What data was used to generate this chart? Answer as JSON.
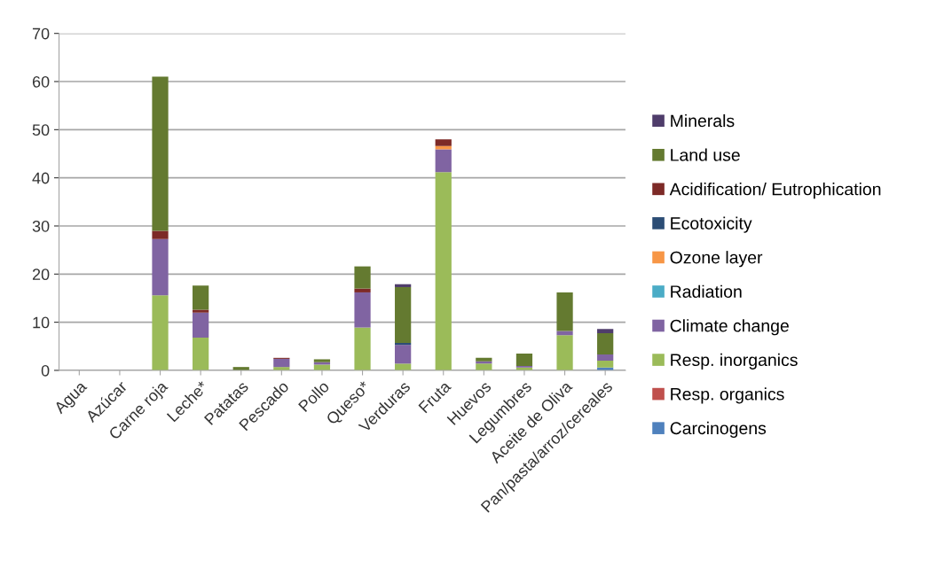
{
  "chart_data": {
    "type": "bar",
    "stacked": true,
    "categories": [
      "Agua",
      "Azúcar",
      "Carne roja",
      "Leche*",
      "Patatas",
      "Pescado",
      "Pollo",
      "Queso*",
      "Verduras",
      "Fruta",
      "Huevos",
      "Legumbres",
      "Aceite de Oliva",
      "Pan/pasta/arroz/cereales"
    ],
    "series": [
      {
        "name": "Carcinogens",
        "color": "#4f81bd",
        "values": [
          0,
          0,
          0,
          0,
          0,
          0,
          0,
          0,
          0,
          0,
          0,
          0,
          0,
          0.6
        ]
      },
      {
        "name": "Resp. organics",
        "color": "#c0504d",
        "values": [
          0,
          0,
          0,
          0,
          0,
          0,
          0,
          0,
          0,
          0,
          0,
          0,
          0,
          0
        ]
      },
      {
        "name": "Resp. inorganics",
        "color": "#9bbb59",
        "values": [
          0,
          0,
          15.6,
          6.8,
          null,
          0.7,
          1.2,
          8.9,
          1.4,
          41.2,
          1.4,
          0.6,
          7.3,
          1.4
        ]
      },
      {
        "name": "Climate change",
        "color": "#8064a2",
        "values": [
          0,
          0,
          11.7,
          5.2,
          0,
          1.7,
          0.5,
          7.3,
          3.9,
          4.7,
          0.5,
          0.3,
          0.9,
          1.3
        ]
      },
      {
        "name": "Radiation",
        "color": "#4bacc6",
        "values": [
          0,
          0,
          0,
          0,
          0,
          0,
          0,
          0,
          0,
          0,
          0,
          0,
          0,
          0
        ]
      },
      {
        "name": "Ozone layer",
        "color": "#f79646",
        "values": [
          0,
          0,
          0,
          0,
          0,
          0,
          0,
          0,
          0,
          0.7,
          0,
          0,
          0,
          0
        ]
      },
      {
        "name": "Ecotoxicity",
        "color": "#2c4d75",
        "values": [
          0,
          0,
          0,
          0,
          0,
          0,
          0,
          0,
          0.4,
          0,
          0,
          0,
          0,
          0
        ]
      },
      {
        "name": "Acidification/ Eutrophication",
        "color": "#7d2a27",
        "values": [
          0,
          0,
          1.7,
          0.6,
          0,
          0.2,
          0,
          0.8,
          0,
          1.4,
          0,
          0,
          0,
          0
        ]
      },
      {
        "name": "Land use",
        "color": "#647a30",
        "values": [
          0,
          0,
          32.0,
          5.0,
          0.7,
          0,
          0.6,
          4.6,
          11.6,
          0,
          0.7,
          2.6,
          8.0,
          4.4
        ]
      },
      {
        "name": "Minerals",
        "color": "#4f3d6b",
        "values": [
          0,
          0,
          0,
          0,
          0,
          0,
          0,
          0,
          0.6,
          0,
          0,
          0,
          0,
          0.9
        ]
      }
    ],
    "ylim": [
      0,
      70
    ],
    "yticks": [
      0,
      10,
      20,
      30,
      40,
      50,
      60,
      70
    ],
    "grid": "y",
    "legend": "right"
  }
}
